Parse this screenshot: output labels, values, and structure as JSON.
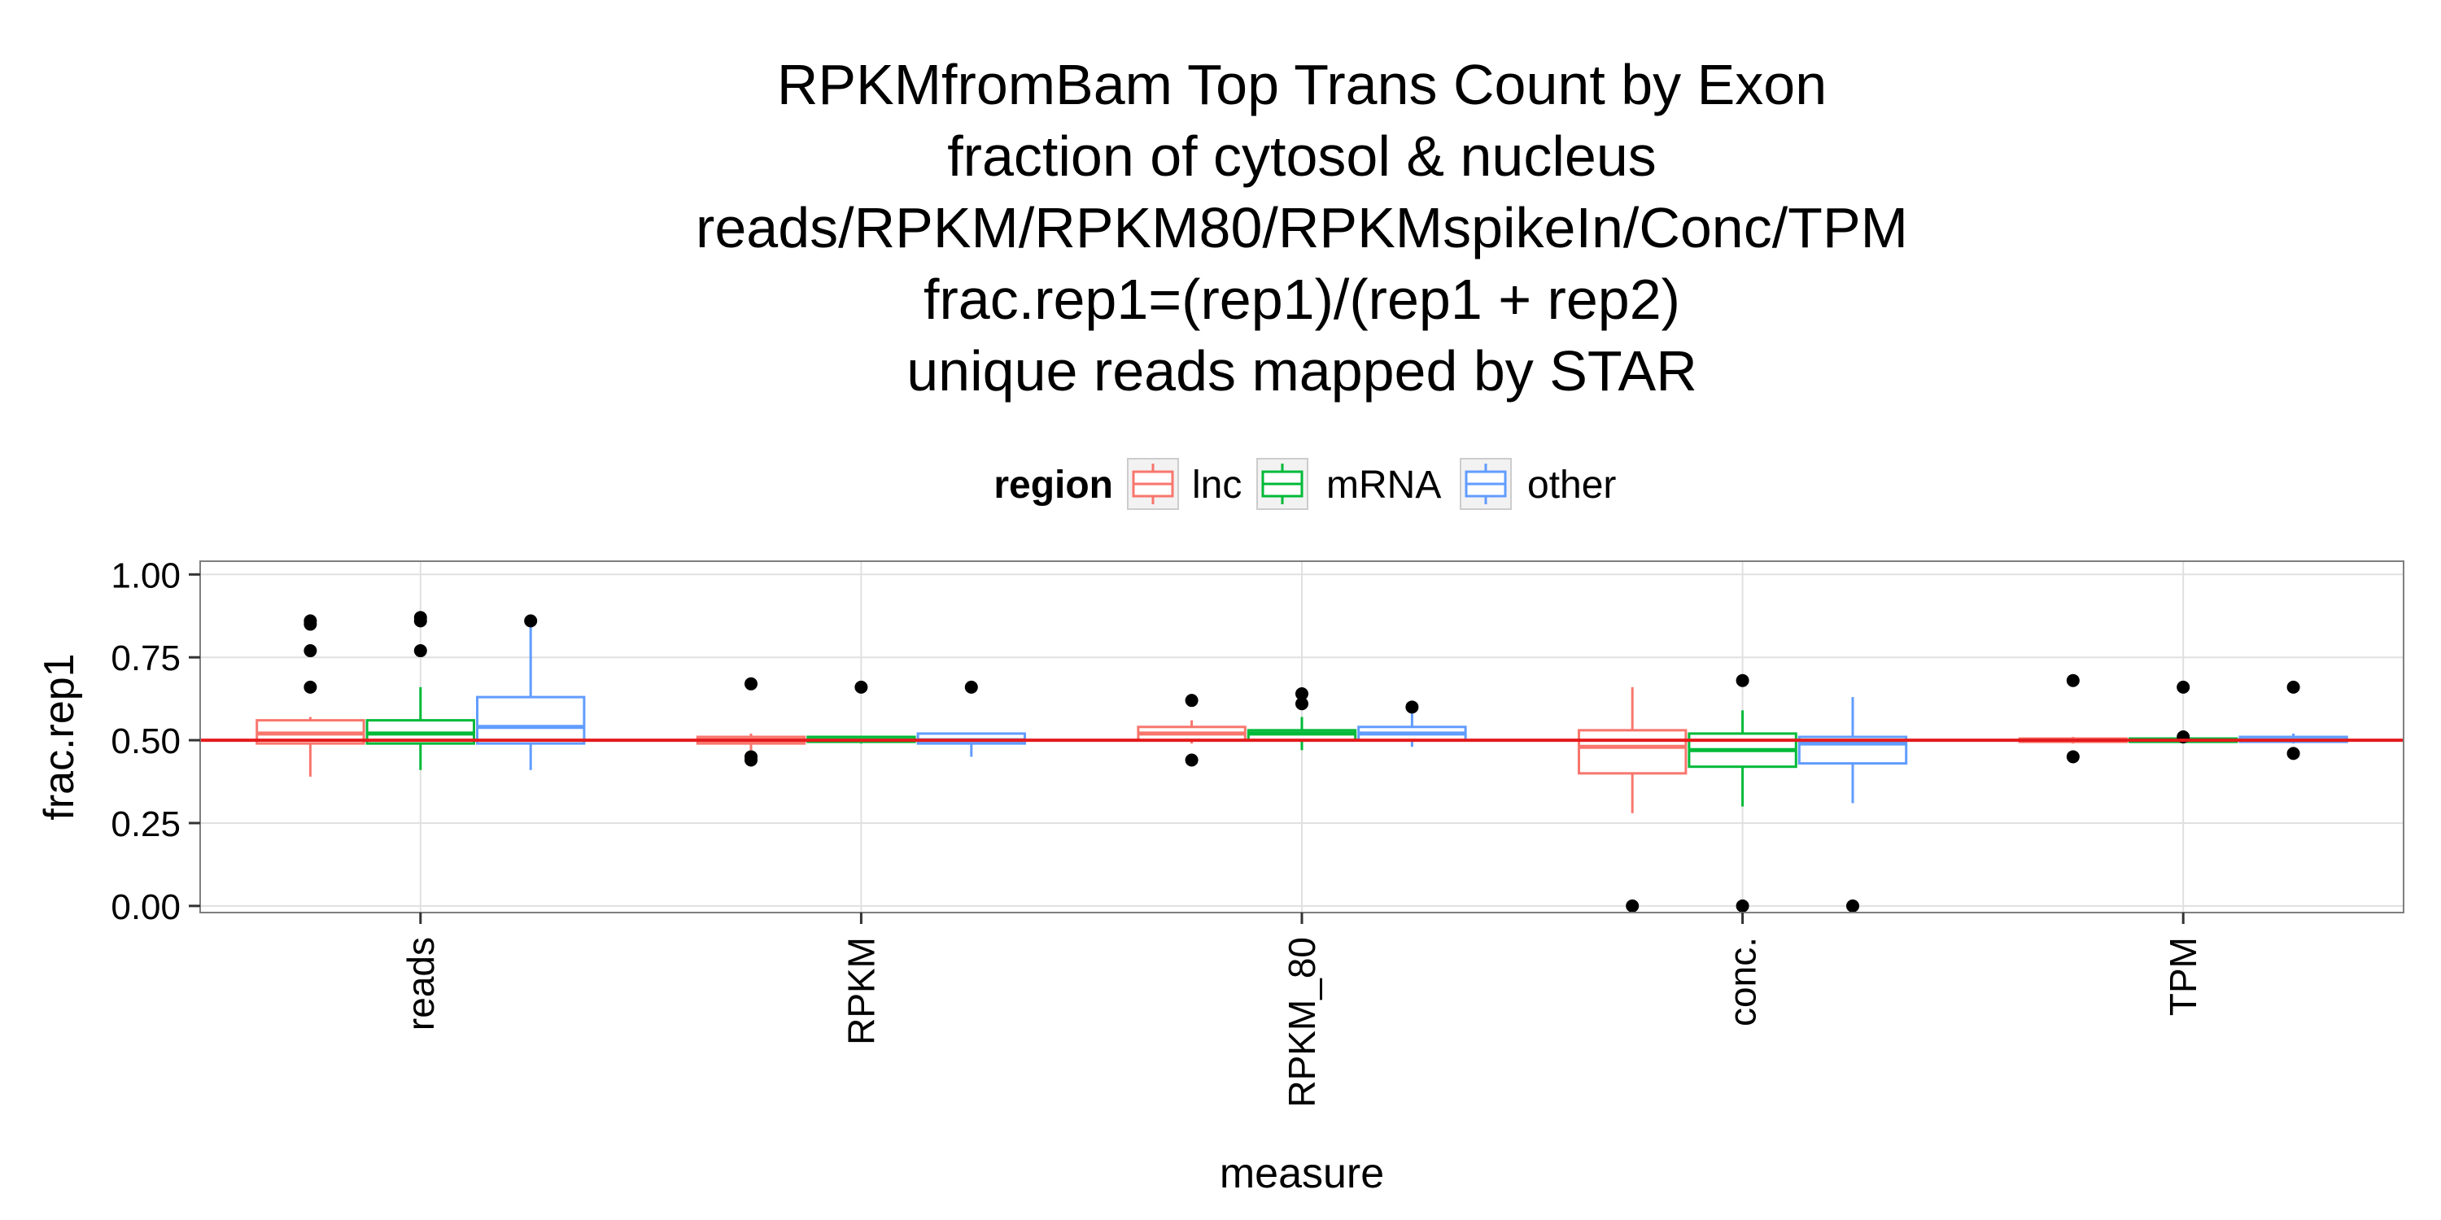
{
  "chart_data": {
    "type": "box",
    "title_lines": [
      "RPKMfromBam Top Trans Count by Exon",
      "fraction of cytosol & nucleus",
      "reads/RPKM/RPKM80/RPKMspikeIn/Conc/TPM",
      "frac.rep1=(rep1)/(rep1 + rep2)",
      "unique reads mapped by STAR"
    ],
    "xlabel": "measure",
    "ylabel": "frac.rep1",
    "ylim": [
      -0.02,
      1.04
    ],
    "yticks": [
      {
        "value": 0.0,
        "label": "0.00"
      },
      {
        "value": 0.25,
        "label": "0.25"
      },
      {
        "value": 0.5,
        "label": "0.50"
      },
      {
        "value": 0.75,
        "label": "0.75"
      },
      {
        "value": 1.0,
        "label": "1.00"
      }
    ],
    "categories": [
      "reads",
      "RPKM",
      "RPKM_80",
      "conc.",
      "TPM"
    ],
    "reference_line": {
      "y": 0.5,
      "color": "#e41a1c"
    },
    "legend": {
      "title": "region",
      "position": "top",
      "items": [
        {
          "label": "lnc",
          "color": "#f8766d"
        },
        {
          "label": "mRNA",
          "color": "#00ba38"
        },
        {
          "label": "other",
          "color": "#619cff"
        }
      ]
    },
    "grid": true,
    "series": [
      {
        "name": "lnc",
        "color": "#f8766d",
        "boxes": [
          {
            "min": 0.39,
            "q1": 0.49,
            "median": 0.52,
            "q3": 0.56,
            "max": 0.57,
            "outliers": [
              0.66,
              0.77,
              0.85,
              0.86
            ]
          },
          {
            "min": 0.47,
            "q1": 0.49,
            "median": 0.5,
            "q3": 0.51,
            "max": 0.52,
            "outliers": [
              0.44,
              0.45,
              0.67
            ]
          },
          {
            "min": 0.49,
            "q1": 0.5,
            "median": 0.52,
            "q3": 0.54,
            "max": 0.56,
            "outliers": [
              0.44,
              0.62
            ]
          },
          {
            "min": 0.28,
            "q1": 0.4,
            "median": 0.48,
            "q3": 0.53,
            "max": 0.66,
            "outliers": [
              0.0
            ]
          },
          {
            "min": 0.49,
            "q1": 0.495,
            "median": 0.5,
            "q3": 0.505,
            "max": 0.51,
            "outliers": [
              0.45,
              0.68
            ]
          }
        ]
      },
      {
        "name": "mRNA",
        "color": "#00ba38",
        "boxes": [
          {
            "min": 0.41,
            "q1": 0.49,
            "median": 0.52,
            "q3": 0.56,
            "max": 0.66,
            "outliers": [
              0.77,
              0.86,
              0.87
            ]
          },
          {
            "min": 0.49,
            "q1": 0.495,
            "median": 0.5,
            "q3": 0.51,
            "max": 0.51,
            "outliers": [
              0.66
            ]
          },
          {
            "min": 0.47,
            "q1": 0.5,
            "median": 0.52,
            "q3": 0.53,
            "max": 0.57,
            "outliers": [
              0.61,
              0.64
            ]
          },
          {
            "min": 0.3,
            "q1": 0.42,
            "median": 0.47,
            "q3": 0.52,
            "max": 0.59,
            "outliers": [
              0.0,
              0.68
            ]
          },
          {
            "min": 0.49,
            "q1": 0.495,
            "median": 0.5,
            "q3": 0.505,
            "max": 0.51,
            "outliers": [
              0.51,
              0.66
            ]
          }
        ]
      },
      {
        "name": "other",
        "color": "#619cff",
        "boxes": [
          {
            "min": 0.41,
            "q1": 0.49,
            "median": 0.54,
            "q3": 0.63,
            "max": 0.85,
            "outliers": [
              0.86
            ]
          },
          {
            "min": 0.45,
            "q1": 0.49,
            "median": 0.5,
            "q3": 0.52,
            "max": 0.52,
            "outliers": [
              0.66
            ]
          },
          {
            "min": 0.48,
            "q1": 0.5,
            "median": 0.52,
            "q3": 0.54,
            "max": 0.58,
            "outliers": [
              0.6
            ]
          },
          {
            "min": 0.31,
            "q1": 0.43,
            "median": 0.49,
            "q3": 0.51,
            "max": 0.63,
            "outliers": [
              0.0
            ]
          },
          {
            "min": 0.49,
            "q1": 0.495,
            "median": 0.5,
            "q3": 0.51,
            "max": 0.52,
            "outliers": [
              0.46,
              0.66
            ]
          }
        ]
      }
    ]
  }
}
